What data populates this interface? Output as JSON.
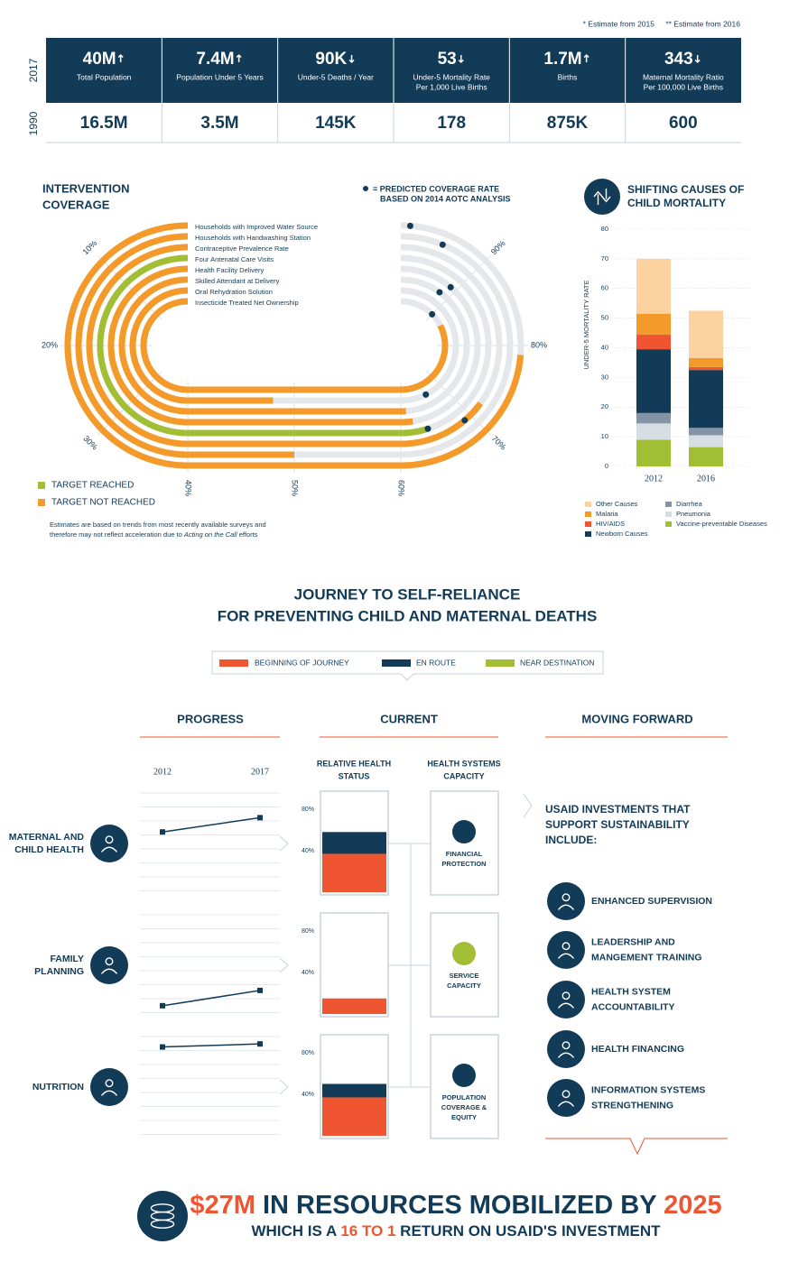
{
  "notes": [
    "* Estimate from 2015",
    "** Estimate from 2016"
  ],
  "stats": {
    "row_labels": [
      "2017",
      "1990"
    ],
    "columns": [
      {
        "value_2017": "40M",
        "trend": "up",
        "label": [
          "Total Population"
        ],
        "value_1990": "16.5M"
      },
      {
        "value_2017": "7.4M",
        "trend": "up",
        "label": [
          "Population Under 5 Years"
        ],
        "value_1990": "3.5M"
      },
      {
        "marker": "**",
        "value_2017": "90K",
        "trend": "down",
        "label": [
          "Under-5 Deaths / Year"
        ],
        "value_1990": "145K"
      },
      {
        "marker": "**",
        "value_2017": "53",
        "trend": "down",
        "label": [
          "Under-5 Mortality Rate",
          "Per 1,000 Live Births"
        ],
        "value_1990": "178"
      },
      {
        "value_2017": "1.7M",
        "trend": "up",
        "label": [
          "Births"
        ],
        "value_1990": "875K"
      },
      {
        "marker": "*",
        "value_2017": "343",
        "trend": "down",
        "label": [
          "Maternal Mortality Ratio",
          "Per 100,000 Live Births"
        ],
        "value_1990": "600"
      }
    ]
  },
  "chart_data": [
    {
      "type": "track",
      "title": [
        "INTERVENTION",
        "COVERAGE"
      ],
      "predicted_note": [
        "= PREDICTED COVERAGE RATE",
        "BASED ON 2014 AOTC ANALYSIS"
      ],
      "predicted_color": "#123b57",
      "categories": [
        "Households with Improved Water Source",
        "Households with Handwashing Station",
        "Contraceptive Prevalence Rate",
        "Four Antenatal Care Visits",
        "Health Facility Delivery",
        "Skilled Attendant at Delivery",
        "Oral Rehydration Solution",
        "Insecticide Treated Net Ownership"
      ],
      "values": [
        79,
        50,
        72,
        64,
        62,
        61,
        48,
        86
      ],
      "predicted": [
        99,
        95,
        69,
        64,
        91,
        92,
        66,
        90
      ],
      "target_reached": [
        false,
        false,
        false,
        true,
        false,
        false,
        false,
        false
      ],
      "legend": [
        {
          "name": "TARGET REACHED",
          "color": "#a2be34"
        },
        {
          "name": "TARGET NOT REACHED",
          "color": "#f39a2b"
        }
      ],
      "lim": [
        0,
        100
      ],
      "ticks": [
        {
          "value": 10,
          "label": "10%"
        },
        {
          "value": 20,
          "label": "20%"
        },
        {
          "value": 30,
          "label": "30%"
        },
        {
          "value": 40,
          "label": "40%"
        },
        {
          "value": 50,
          "label": "50%"
        },
        {
          "value": 60,
          "label": "60%"
        },
        {
          "value": 70,
          "label": "70%"
        },
        {
          "value": 80,
          "label": "80%"
        },
        {
          "value": 90,
          "label": "90%"
        }
      ],
      "note": [
        "Estimates are based on trends from most recently available surveys and",
        "therefore may not reflect acceleration due to ",
        "Acting on the Call",
        " efforts"
      ]
    },
    {
      "type": "stacked_bar",
      "title": [
        "SHIFTING CAUSES OF",
        "CHILD MORTALITY"
      ],
      "y_label": "UNDER-5 MORTALITY RATE",
      "categories": [
        "2012",
        "2016"
      ],
      "ylim": [
        0,
        80
      ],
      "yticks": [
        0,
        10,
        20,
        30,
        40,
        50,
        60,
        70,
        80
      ],
      "grid": true,
      "series": [
        {
          "name": "Vaccine-preventable Diseases",
          "color": "#a2be34",
          "values": [
            9,
            6.5
          ]
        },
        {
          "name": "Pneumonia",
          "color": "#d6dde3",
          "values": [
            5.5,
            4
          ]
        },
        {
          "name": "Diarrhea",
          "color": "#8394a6",
          "values": [
            3.5,
            2.5
          ]
        },
        {
          "name": "Newborn Causes",
          "color": "#123b57",
          "values": [
            21.5,
            19.5
          ]
        },
        {
          "name": "HIV/AIDS",
          "color": "#ee5530",
          "values": [
            5,
            1
          ]
        },
        {
          "name": "Malaria",
          "color": "#f39a2b",
          "values": [
            7,
            3
          ]
        },
        {
          "name": "Other Causes",
          "color": "#fbd2a0",
          "values": [
            18.5,
            16
          ]
        }
      ]
    }
  ],
  "journey": {
    "title": [
      "JOURNEY TO SELF-RELIANCE",
      "FOR PREVENTING CHILD AND MATERNAL DEATHS"
    ],
    "legend": [
      {
        "name": "BEGINNING OF JOURNEY",
        "color": "#ee5530"
      },
      {
        "name": "EN ROUTE",
        "color": "#123b57"
      },
      {
        "name": "NEAR DESTINATION",
        "color": "#a2be34"
      }
    ],
    "columns": [
      "PROGRESS",
      "CURRENT",
      "MOVING FORWARD"
    ],
    "progress_years": [
      "2012",
      "2017"
    ],
    "progress_lim": [
      0,
      100
    ],
    "status_header": [
      "RELATIVE HEALTH",
      "STATUS"
    ],
    "capacity_header": [
      "HEALTH SYSTEMS",
      "CAPACITY"
    ],
    "status_lim": [
      0,
      100
    ],
    "status_ticks": [
      {
        "value": 80,
        "label": "80%"
      },
      {
        "value": 40,
        "label": "40%"
      }
    ],
    "rows": [
      {
        "label": [
          "MATERNAL AND",
          "CHILD HEALTH"
        ],
        "progress": [
          60,
          74
        ],
        "status": [
          {
            "value": 37,
            "color": "#ee5530"
          },
          {
            "value": 21,
            "color": "#123b57"
          }
        ],
        "capacity": {
          "label": [
            "FINANCIAL",
            "PROTECTION"
          ],
          "color": "#123b57"
        }
      },
      {
        "label": [
          "FAMILY",
          "PLANNING"
        ],
        "progress": [
          9,
          24
        ],
        "status": [
          {
            "value": 15,
            "color": "#ee5530"
          }
        ],
        "capacity": {
          "label": [
            "SERVICE",
            "CAPACITY"
          ],
          "color": "#a2be34"
        }
      },
      {
        "label": [
          "NUTRITION"
        ],
        "progress": [
          88,
          91
        ],
        "status": [
          {
            "value": 37,
            "color": "#ee5530"
          },
          {
            "value": 13,
            "color": "#123b57"
          }
        ],
        "capacity": {
          "label": [
            "POPULATION",
            "COVERAGE &",
            "EQUITY"
          ],
          "color": "#123b57"
        }
      }
    ]
  },
  "forward": {
    "heading": [
      "USAID INVESTMENTS THAT",
      "SUPPORT SUSTAINABILITY",
      "INCLUDE:"
    ],
    "items": [
      [
        "ENHANCED SUPERVISION"
      ],
      [
        "LEADERSHIP AND",
        "MANGEMENT TRAINING"
      ],
      [
        "HEALTH SYSTEM",
        "ACCOUNTABILITY"
      ],
      [
        "HEALTH FINANCING"
      ],
      [
        "INFORMATION SYSTEMS",
        "STRENGTHENING"
      ]
    ]
  },
  "footer": {
    "headline": [
      "$27M",
      " IN RESOURCES MOBILIZED BY ",
      "2025"
    ],
    "subline": [
      "WHICH IS A ",
      "16 TO 1",
      " RETURN ON USAID'S INVESTMENT"
    ]
  }
}
